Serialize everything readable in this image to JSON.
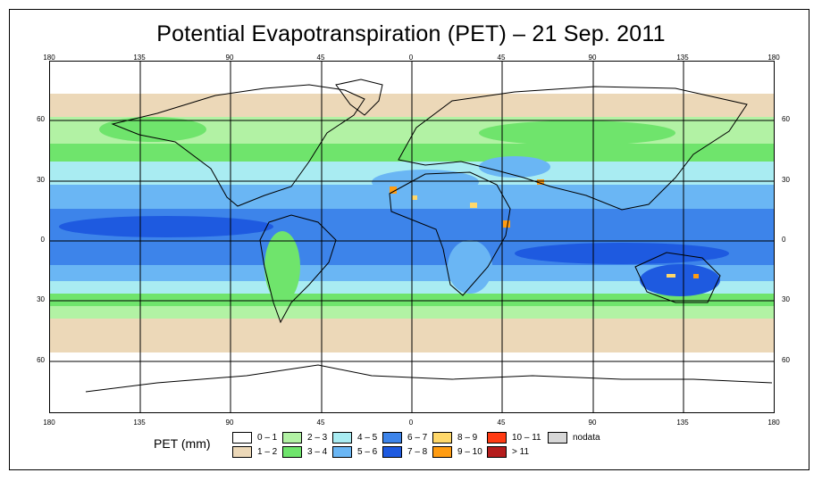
{
  "title": "Potential Evapotranspiration (PET) – 21 Sep. 2011",
  "axes": {
    "longitude_ticks": [
      "180",
      "135",
      "90",
      "45",
      "0",
      "45",
      "90",
      "135",
      "180"
    ],
    "latitude_ticks": [
      "60",
      "30",
      "0",
      "30",
      "60"
    ]
  },
  "legend": {
    "title": "PET (mm)",
    "items": [
      {
        "label": "0 – 1",
        "color": "#ffffff"
      },
      {
        "label": "1 – 2",
        "color": "#ecd8b8"
      },
      {
        "label": "2 – 3",
        "color": "#b2f2a4"
      },
      {
        "label": "3 – 4",
        "color": "#6fe46c"
      },
      {
        "label": "4 – 5",
        "color": "#a9ecf2"
      },
      {
        "label": "5 – 6",
        "color": "#6ab6f4"
      },
      {
        "label": "6 – 7",
        "color": "#3d84ea"
      },
      {
        "label": "7 – 8",
        "color": "#1e5ae0"
      },
      {
        "label": "8 – 9",
        "color": "#ffd86a"
      },
      {
        "label": "9 – 10",
        "color": "#ff9c12"
      },
      {
        "label": "10 – 11",
        "color": "#ff3a12"
      },
      {
        "label": "> 11",
        "color": "#b41c1c"
      },
      {
        "label": "nodata",
        "color": "#d7d7d7"
      }
    ]
  }
}
